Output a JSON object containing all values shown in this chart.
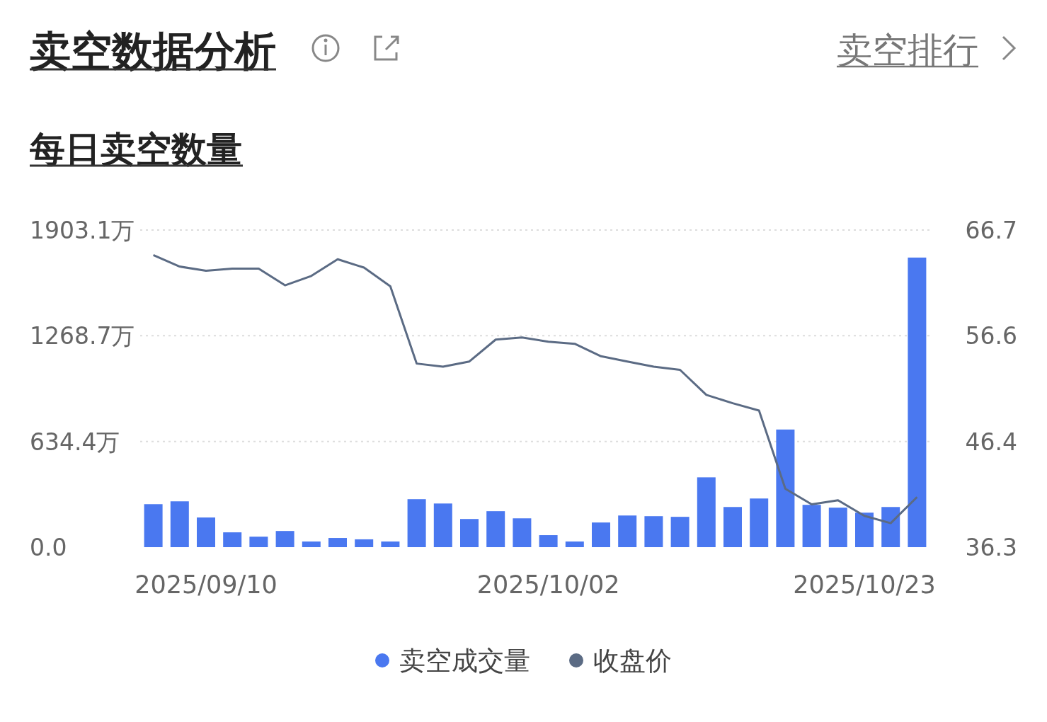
{
  "chart_data": {
    "type": "bar",
    "title": "卖空数据分析",
    "subtitle": "每日卖空数量",
    "annotations": [
      "卖空排行"
    ],
    "categories": [
      null,
      null,
      "2025/09/10",
      null,
      null,
      null,
      null,
      null,
      null,
      null,
      null,
      null,
      null,
      null,
      null,
      "2025/10/02",
      null,
      null,
      null,
      null,
      null,
      null,
      null,
      null,
      null,
      null,
      null,
      "2025/10/23",
      null,
      null
    ],
    "series": [
      {
        "name": "卖空成交量",
        "color": "#4a78f0",
        "values": [
          258,
          275,
          178,
          89,
          63,
          97,
          34,
          55,
          47,
          34,
          288,
          262,
          169,
          216,
          173,
          72,
          34,
          148,
          190,
          186,
          182,
          419,
          241,
          292,
          706,
          254,
          237,
          207,
          241,
          1738
        ]
      },
      {
        "name": "收盘价",
        "type": "line",
        "axis": "y2",
        "color": "#5b6b84",
        "values": [
          64.3,
          63.2,
          62.8,
          63.0,
          63.0,
          61.4,
          62.3,
          63.9,
          63.1,
          61.3,
          53.9,
          53.6,
          54.1,
          56.2,
          56.4,
          56.0,
          55.8,
          54.6,
          54.1,
          53.6,
          53.3,
          50.9,
          50.1,
          49.4,
          41.9,
          40.4,
          40.8,
          39.3,
          38.6,
          41.1
        ]
      }
    ],
    "ylim": [
      0,
      1903.1
    ],
    "yticks": [
      {
        "value": 0,
        "label": "0.0"
      },
      {
        "value": 634.4,
        "label": "634.4万"
      },
      {
        "value": 1268.7,
        "label": "1268.7万"
      },
      {
        "value": 1903.1,
        "label": "1903.1万"
      }
    ],
    "y2lim": [
      36.3,
      66.7
    ],
    "y2ticks": [
      36.3,
      46.4,
      56.6,
      66.7
    ],
    "grid": "y",
    "legend": "bottom"
  }
}
